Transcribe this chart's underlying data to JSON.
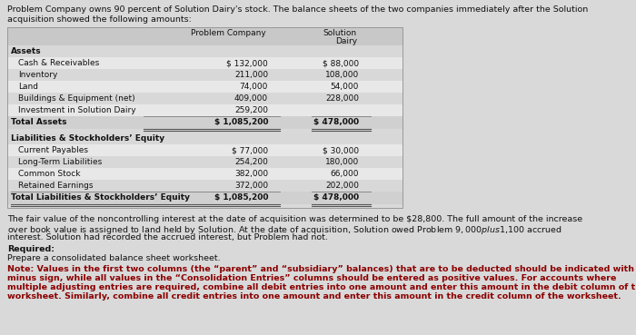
{
  "title_line1": "Problem Company owns 90 percent of Solution Dairy's stock. The balance sheets of the two companies immediately after the Solution",
  "title_line2": "acquisition showed the following amounts:",
  "col_header1": "Problem Company",
  "col_header2a": "Solution",
  "col_header2b": "Dairy",
  "section1_header": "Assets",
  "assets_rows": [
    [
      "Cash & Receivables",
      "$ 132,000",
      "$ 88,000"
    ],
    [
      "Inventory",
      "211,000",
      "108,000"
    ],
    [
      "Land",
      "74,000",
      "54,000"
    ],
    [
      "Buildings & Equipment (net)",
      "409,000",
      "228,000"
    ],
    [
      "Investment in Solution Dairy",
      "259,200",
      ""
    ]
  ],
  "total_assets_row": [
    "Total Assets",
    "$ 1,085,200",
    "$ 478,000"
  ],
  "section2_header": "Liabilities & Stockholders’ Equity",
  "liab_rows": [
    [
      "Current Payables",
      "$ 77,000",
      "$ 30,000"
    ],
    [
      "Long-Term Liabilities",
      "254,200",
      "180,000"
    ],
    [
      "Common Stock",
      "382,000",
      "66,000"
    ],
    [
      "Retained Earnings",
      "372,000",
      "202,000"
    ]
  ],
  "total_liab_row": [
    "Total Liabilities & Stockholders’ Equity",
    "$ 1,085,200",
    "$ 478,000"
  ],
  "para1": "The fair value of the noncontrolling interest at the date of acquisition was determined to be $28,800. The full amount of the increase",
  "para2": "over book value is assigned to land held by Solution. At the date of acquisition, Solution owed Problem $9,000 plus $1,100 accrued",
  "para3": "interest. Solution had recorded the accrued interest, but Problem had not.",
  "required_header": "Required:",
  "required_line": "Prepare a consolidated balance sheet worksheet.",
  "note_line1": "Note: Values in the first two columns (the “parent” and “subsidiary” balances) that are to be deducted should be indicated with a",
  "note_line2": "minus sign, while all values in the “Consolidation Entries” columns should be entered as positive values. For accounts where",
  "note_line3": "multiple adjusting entries are required, combine all debit entries into one amount and enter this amount in the debit column of the",
  "note_line4": "worksheet. Similarly, combine all credit entries into one amount and enter this amount in the credit column of the worksheet.",
  "bg_color": "#d9d9d9",
  "table_bg": "#e8e8e8",
  "table_header_bg": "#c8c8c8",
  "row_light": "#e0e0e0",
  "row_dark": "#d0d0d0",
  "total_row_bg": "#c0c0c0",
  "text_dark": "#111111",
  "note_color": "#8B0000"
}
